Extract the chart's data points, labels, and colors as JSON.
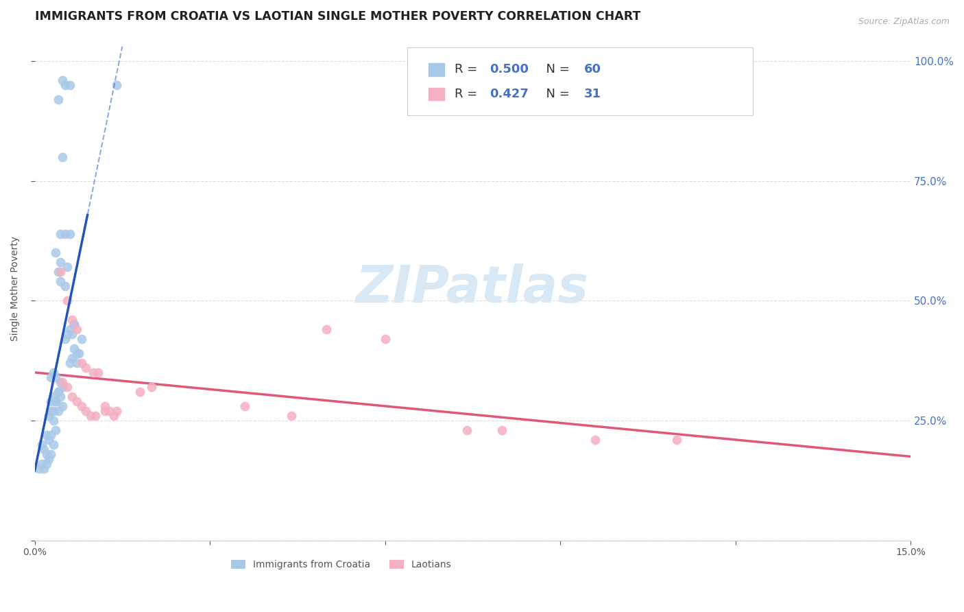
{
  "title": "IMMIGRANTS FROM CROATIA VS LAOTIAN SINGLE MOTHER POVERTY CORRELATION CHART",
  "source": "Source: ZipAtlas.com",
  "ylabel": "Single Mother Poverty",
  "xlim": [
    0.0,
    0.15
  ],
  "ylim": [
    0.0,
    1.05
  ],
  "yticks": [
    0.0,
    0.25,
    0.5,
    0.75,
    1.0
  ],
  "ytick_labels_right": [
    "",
    "25.0%",
    "50.0%",
    "75.0%",
    "100.0%"
  ],
  "xticks": [
    0.0,
    0.03,
    0.06,
    0.09,
    0.12,
    0.15
  ],
  "xtick_labels": [
    "0.0%",
    "",
    "",
    "",
    "",
    "15.0%"
  ],
  "blue_color": "#a8c8e8",
  "pink_color": "#f4b0c0",
  "blue_line_color": "#2255bb",
  "pink_line_color": "#e05878",
  "background_color": "#ffffff",
  "grid_color": "#dddddd",
  "right_yaxis_color": "#4472c4",
  "title_color": "#222222",
  "source_color": "#aaaaaa",
  "watermark_text": "ZIPatlas",
  "watermark_color": "#d8e8f5",
  "legend_R_blue": "0.500",
  "legend_N_blue": "60",
  "legend_R_pink": "0.427",
  "legend_N_pink": "31",
  "legend_series": [
    "Immigrants from Croatia",
    "Laotians"
  ],
  "blue_scatter_x": [
    0.0048,
    0.0052,
    0.004,
    0.006,
    0.0048,
    0.0044,
    0.0052,
    0.006,
    0.0044,
    0.0036,
    0.004,
    0.0044,
    0.0052,
    0.0056,
    0.006,
    0.0068,
    0.0052,
    0.0056,
    0.0064,
    0.0068,
    0.0072,
    0.008,
    0.006,
    0.0064,
    0.0068,
    0.0072,
    0.0076,
    0.0028,
    0.0032,
    0.0036,
    0.004,
    0.0044,
    0.0048,
    0.0032,
    0.0036,
    0.004,
    0.0044,
    0.0048,
    0.0028,
    0.0032,
    0.0036,
    0.004,
    0.0024,
    0.0028,
    0.0032,
    0.0036,
    0.002,
    0.0024,
    0.0028,
    0.0032,
    0.0016,
    0.002,
    0.0024,
    0.0028,
    0.0012,
    0.0016,
    0.002,
    0.014,
    0.0008,
    0.0012
  ],
  "blue_scatter_y": [
    0.96,
    0.95,
    0.92,
    0.95,
    0.8,
    0.64,
    0.64,
    0.64,
    0.58,
    0.6,
    0.56,
    0.54,
    0.53,
    0.57,
    0.44,
    0.45,
    0.42,
    0.43,
    0.43,
    0.45,
    0.39,
    0.42,
    0.37,
    0.38,
    0.4,
    0.37,
    0.39,
    0.34,
    0.35,
    0.34,
    0.31,
    0.33,
    0.32,
    0.3,
    0.29,
    0.31,
    0.3,
    0.28,
    0.29,
    0.27,
    0.29,
    0.27,
    0.26,
    0.27,
    0.25,
    0.23,
    0.22,
    0.21,
    0.22,
    0.2,
    0.19,
    0.18,
    0.17,
    0.18,
    0.16,
    0.15,
    0.16,
    0.95,
    0.15,
    0.2
  ],
  "pink_scatter_x": [
    0.0044,
    0.0056,
    0.0064,
    0.0072,
    0.008,
    0.0088,
    0.01,
    0.0108,
    0.012,
    0.0048,
    0.0056,
    0.0064,
    0.0072,
    0.008,
    0.0088,
    0.0096,
    0.0104,
    0.012,
    0.0128,
    0.0136,
    0.014,
    0.018,
    0.02,
    0.036,
    0.044,
    0.05,
    0.06,
    0.074,
    0.08,
    0.096,
    0.11
  ],
  "pink_scatter_y": [
    0.56,
    0.5,
    0.46,
    0.44,
    0.37,
    0.36,
    0.35,
    0.35,
    0.27,
    0.33,
    0.32,
    0.3,
    0.29,
    0.28,
    0.27,
    0.26,
    0.26,
    0.28,
    0.27,
    0.26,
    0.27,
    0.31,
    0.32,
    0.28,
    0.26,
    0.44,
    0.42,
    0.23,
    0.23,
    0.21,
    0.21
  ]
}
